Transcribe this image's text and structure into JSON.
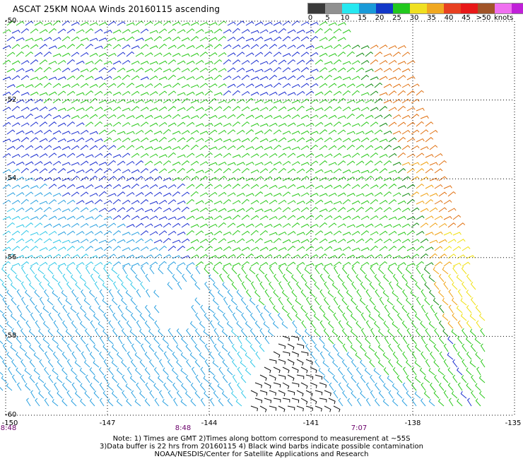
{
  "title": "ASCAT 25KM NOAA Winds 20160115 ascending",
  "legend": {
    "colors": [
      "#3a3a3a",
      "#909090",
      "#26e8f0",
      "#1a9ad8",
      "#1238c8",
      "#22c81e",
      "#f0e020",
      "#f0a820",
      "#e84020",
      "#e81818",
      "#a05428",
      "#f070f0",
      "#c020d8",
      "#5a1a8a"
    ],
    "labels": [
      "0",
      "5",
      "10",
      "15",
      "20",
      "25",
      "30",
      "35",
      "40",
      "45",
      ">50"
    ],
    "unit": "knots"
  },
  "lat_labels": [
    "-50",
    "-52",
    "-54",
    "-56",
    "-58",
    "-60"
  ],
  "lon_labels": [
    "-150",
    "-147",
    "-144",
    "-141",
    "-138",
    "-135"
  ],
  "time_labels": [
    "8:48",
    "8:48",
    "7:07"
  ],
  "notes": [
    "Note: 1) Times are GMT 2)Times along bottom correspond to measurement at ~55S",
    "3)Data buffer is 22 hrs from 20160115 4) Black wind barbs indicate possible contamination",
    "NOAA/NESDIS/Center for Satellite Applications and Research"
  ],
  "map": {
    "lat_range": [
      -60,
      -50
    ],
    "lon_range": [
      -150,
      -135
    ],
    "color_key": {
      "black": "#101010",
      "cyan": "#30c8e8",
      "lightblue": "#2aa0e0",
      "blue": "#1a2ed0",
      "green": "#2ac81a",
      "darkgreen": "#108a10",
      "yellow": "#f0e010",
      "orange": "#f0a010",
      "darkorange": "#e07010"
    }
  }
}
